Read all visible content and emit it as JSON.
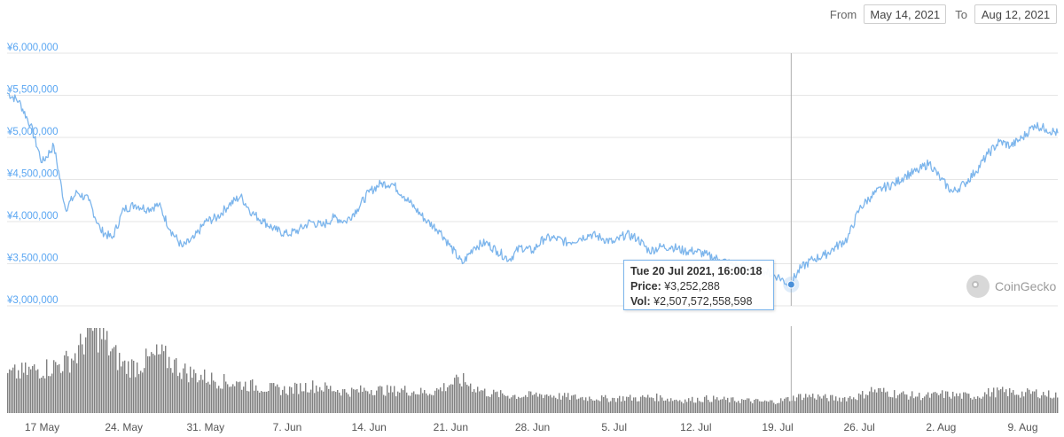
{
  "range": {
    "from_label": "From",
    "from_value": "May 14, 2021",
    "to_label": "To",
    "to_value": "Aug 12, 2021"
  },
  "brand": {
    "name": "CoinGecko",
    "icon": "coingecko-logo-icon"
  },
  "colors": {
    "line": "#7cb5ec",
    "volume": "#808080",
    "grid": "#e6e6e6",
    "ytick": "#5aa6f2",
    "crosshair": "#b0b0b0"
  },
  "tooltip": {
    "date": "Tue 20 Jul 2021, 16:00:18",
    "price_label": "Price:",
    "price_value": "¥3,252,288",
    "vol_label": "Vol:",
    "vol_value": "¥2,507,572,558,598"
  },
  "chart_data": {
    "type": "line",
    "title": "",
    "xlabel": "",
    "ylabel": "",
    "grid": true,
    "y_ticks": [
      "¥3,000,000",
      "¥3,500,000",
      "¥4,000,000",
      "¥4,500,000",
      "¥5,000,000",
      "¥5,500,000",
      "¥6,000,000"
    ],
    "y_tick_values": [
      3000000,
      3500000,
      4000000,
      4500000,
      5000000,
      5500000,
      6000000
    ],
    "ylim": [
      3000000,
      6000000
    ],
    "x_ticks": [
      "17 May",
      "24. May",
      "31. May",
      "7. Jun",
      "14. Jun",
      "21. Jun",
      "28. Jun",
      "5. Jul",
      "12. Jul",
      "19. Jul",
      "26. Jul",
      "2. Aug",
      "9. Aug"
    ],
    "x_tick_dates": [
      "2021-05-17",
      "2021-05-24",
      "2021-05-31",
      "2021-06-07",
      "2021-06-14",
      "2021-06-21",
      "2021-06-28",
      "2021-07-05",
      "2021-07-12",
      "2021-07-19",
      "2021-07-26",
      "2021-08-02",
      "2021-08-09"
    ],
    "xlim": [
      "2021-05-14",
      "2021-08-12"
    ],
    "series": [
      {
        "x": [
          "2021-05-14",
          "2021-05-15",
          "2021-05-16",
          "2021-05-17",
          "2021-05-18",
          "2021-05-19",
          "2021-05-20",
          "2021-05-21",
          "2021-05-22",
          "2021-05-23",
          "2021-05-24",
          "2021-05-25",
          "2021-05-26",
          "2021-05-27",
          "2021-05-28",
          "2021-05-29",
          "2021-05-30",
          "2021-05-31",
          "2021-06-01",
          "2021-06-02",
          "2021-06-03",
          "2021-06-04",
          "2021-06-05",
          "2021-06-06",
          "2021-06-07",
          "2021-06-08",
          "2021-06-09",
          "2021-06-10",
          "2021-06-11",
          "2021-06-12",
          "2021-06-13",
          "2021-06-14",
          "2021-06-15",
          "2021-06-16",
          "2021-06-17",
          "2021-06-18",
          "2021-06-19",
          "2021-06-20",
          "2021-06-21",
          "2021-06-22",
          "2021-06-23",
          "2021-06-24",
          "2021-06-25",
          "2021-06-26",
          "2021-06-27",
          "2021-06-28",
          "2021-06-29",
          "2021-06-30",
          "2021-07-01",
          "2021-07-02",
          "2021-07-03",
          "2021-07-04",
          "2021-07-05",
          "2021-07-06",
          "2021-07-07",
          "2021-07-08",
          "2021-07-09",
          "2021-07-10",
          "2021-07-11",
          "2021-07-12",
          "2021-07-13",
          "2021-07-14",
          "2021-07-15",
          "2021-07-16",
          "2021-07-17",
          "2021-07-18",
          "2021-07-19",
          "2021-07-20",
          "2021-07-21",
          "2021-07-22",
          "2021-07-23",
          "2021-07-24",
          "2021-07-25",
          "2021-07-26",
          "2021-07-27",
          "2021-07-28",
          "2021-07-29",
          "2021-07-30",
          "2021-07-31",
          "2021-08-01",
          "2021-08-02",
          "2021-08-03",
          "2021-08-04",
          "2021-08-05",
          "2021-08-06",
          "2021-08-07",
          "2021-08-08",
          "2021-08-09",
          "2021-08-10",
          "2021-08-11",
          "2021-08-12"
        ],
        "y": [
          5530000,
          5430000,
          5150000,
          4700000,
          4900000,
          4150000,
          4350000,
          4250000,
          3900000,
          3800000,
          4150000,
          4200000,
          4150000,
          4200000,
          3900000,
          3700000,
          3800000,
          4000000,
          4050000,
          4200000,
          4300000,
          4100000,
          4000000,
          3900000,
          3850000,
          3900000,
          4000000,
          3950000,
          4050000,
          4000000,
          4150000,
          4350000,
          4450000,
          4450000,
          4300000,
          4150000,
          4000000,
          3900000,
          3700000,
          3500000,
          3700000,
          3750000,
          3650000,
          3550000,
          3700000,
          3650000,
          3800000,
          3800000,
          3750000,
          3800000,
          3850000,
          3800000,
          3750000,
          3850000,
          3800000,
          3650000,
          3700000,
          3700000,
          3650000,
          3650000,
          3600000,
          3550000,
          3500000,
          3450000,
          3450000,
          3400000,
          3350000,
          3250000,
          3450000,
          3550000,
          3600000,
          3700000,
          3800000,
          4150000,
          4300000,
          4400000,
          4450000,
          4550000,
          4600000,
          4700000,
          4500000,
          4350000,
          4450000,
          4600000,
          4800000,
          4950000,
          4900000,
          5000000,
          5150000,
          5100000,
          5050000
        ]
      }
    ],
    "volume_note": "volume bars shown unlabeled under the price line",
    "volume_ylim": [
      0,
      1
    ],
    "volume": [
      0.45,
      0.47,
      0.5,
      0.52,
      0.55,
      0.6,
      0.7,
      1.0,
      0.92,
      0.7,
      0.55,
      0.55,
      0.62,
      0.68,
      0.6,
      0.5,
      0.45,
      0.42,
      0.38,
      0.36,
      0.34,
      0.32,
      0.3,
      0.28,
      0.27,
      0.3,
      0.32,
      0.3,
      0.28,
      0.25,
      0.26,
      0.28,
      0.27,
      0.26,
      0.27,
      0.25,
      0.24,
      0.28,
      0.35,
      0.38,
      0.3,
      0.24,
      0.22,
      0.21,
      0.2,
      0.21,
      0.22,
      0.2,
      0.19,
      0.18,
      0.18,
      0.17,
      0.17,
      0.18,
      0.17,
      0.19,
      0.18,
      0.16,
      0.15,
      0.16,
      0.17,
      0.16,
      0.15,
      0.15,
      0.14,
      0.13,
      0.14,
      0.17,
      0.2,
      0.2,
      0.18,
      0.17,
      0.18,
      0.2,
      0.27,
      0.25,
      0.23,
      0.21,
      0.2,
      0.2,
      0.22,
      0.21,
      0.2,
      0.2,
      0.24,
      0.25,
      0.24,
      0.23,
      0.24,
      0.22,
      0.21
    ],
    "hover": {
      "x": "2021-07-20",
      "y": 3252288
    }
  }
}
